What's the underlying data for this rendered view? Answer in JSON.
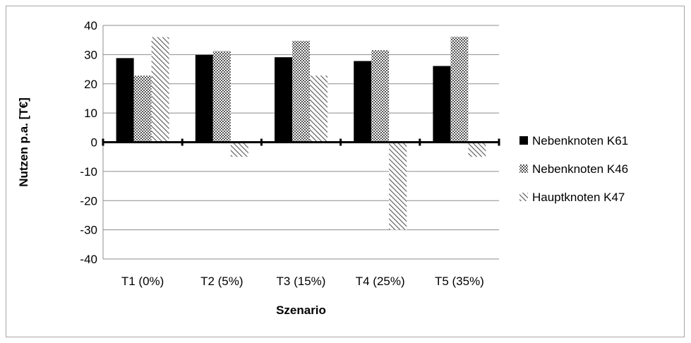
{
  "chart_data": {
    "type": "bar",
    "categories": [
      "T1 (0%)",
      "T2 (5%)",
      "T3 (15%)",
      "T4 (25%)",
      "T5 (35%)"
    ],
    "series": [
      {
        "name": "Nebenknoten K61",
        "values": [
          28.8,
          29.9,
          29.1,
          27.8,
          26.1
        ],
        "pattern": "solid",
        "color": "#000000"
      },
      {
        "name": "Nebenknoten K46",
        "values": [
          22.8,
          31.2,
          34.7,
          31.5,
          36.1
        ],
        "pattern": "checker",
        "color": "#7f7f7f"
      },
      {
        "name": "Hauptknoten K47",
        "values": [
          36.0,
          -5.0,
          22.8,
          -30.0,
          -5.0
        ],
        "pattern": "diagonal-hatch",
        "color": "#595959"
      }
    ],
    "title": "",
    "xlabel": "Szenario",
    "ylabel": "Nutzen p.a. [T€]",
    "ylim": [
      -40,
      40
    ],
    "yticks": [
      40,
      30,
      20,
      10,
      0,
      -10,
      -20,
      -30,
      -40
    ],
    "grid": true,
    "legend_position": "right"
  }
}
